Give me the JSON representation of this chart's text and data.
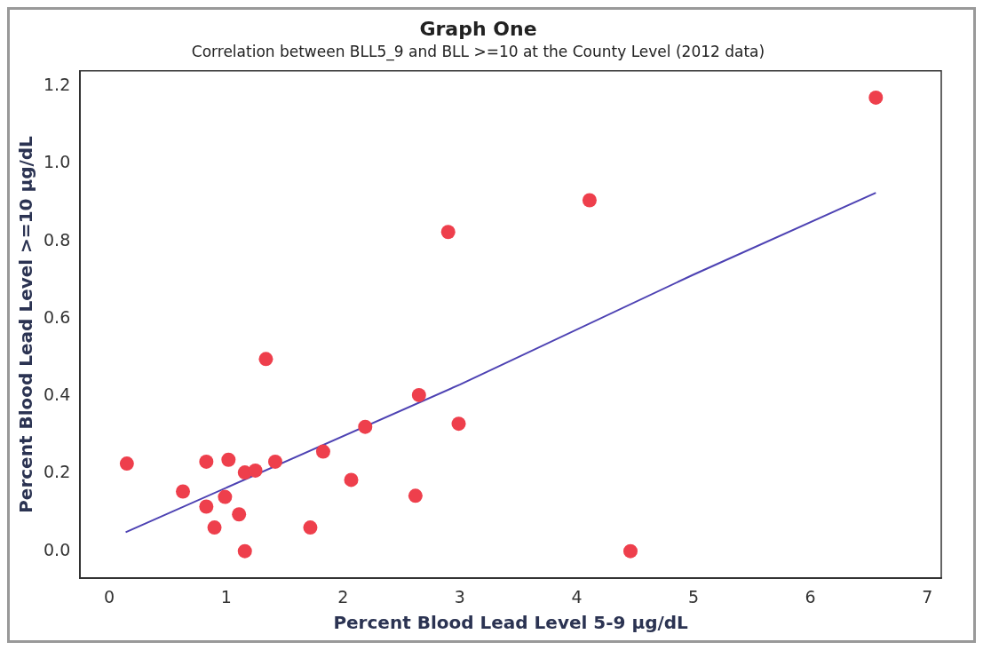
{
  "chart_data": {
    "type": "scatter",
    "title": "Graph One",
    "subtitle": "Correlation between BLL5_9 and BLL >=10 at the County Level (2012 data)",
    "xlabel": "Percent Blood Lead Level 5-9 µg/dL",
    "ylabel": "Percent Blood Lead Level >=10 µg/dL",
    "xlim": [
      -0.25,
      7.12
    ],
    "ylim": [
      -0.07,
      1.24
    ],
    "xticks": [
      0,
      1,
      2,
      3,
      4,
      5,
      6,
      7
    ],
    "yticks": [
      {
        "value": 0,
        "label": "0.0"
      },
      {
        "value": 0.2,
        "label": "0.2"
      },
      {
        "value": 0.4,
        "label": "0.4"
      },
      {
        "value": 0.6,
        "label": "0.6"
      },
      {
        "value": 0.8,
        "label": "0.8"
      },
      {
        "value": 1,
        "label": "1.0"
      },
      {
        "value": 1.2,
        "label": "1.2"
      }
    ],
    "grid": false,
    "legend": false,
    "series": [
      {
        "type": "scatter",
        "marker": "circle",
        "color": "#ee3f4c",
        "x": [
          0.15,
          0.63,
          0.83,
          0.83,
          0.9,
          0.99,
          1.02,
          1.11,
          1.16,
          1.16,
          1.25,
          1.34,
          1.42,
          1.72,
          1.83,
          2.07,
          2.19,
          2.62,
          2.65,
          2.9,
          2.99,
          4.11,
          4.46,
          6.56
        ],
        "values": [
          0.226,
          0.154,
          0.115,
          0.231,
          0.061,
          0.14,
          0.236,
          0.095,
          0.203,
          0.0,
          0.208,
          0.496,
          0.231,
          0.061,
          0.257,
          0.184,
          0.321,
          0.143,
          0.403,
          0.824,
          0.329,
          0.906,
          0.0,
          1.171
        ]
      },
      {
        "type": "line",
        "marker": "none",
        "line_style": "solid",
        "color": "#4d42b3",
        "x": [
          0.14,
          3,
          5,
          6.56
        ],
        "values": [
          0.049,
          0.43,
          0.714,
          0.925
        ]
      }
    ]
  }
}
